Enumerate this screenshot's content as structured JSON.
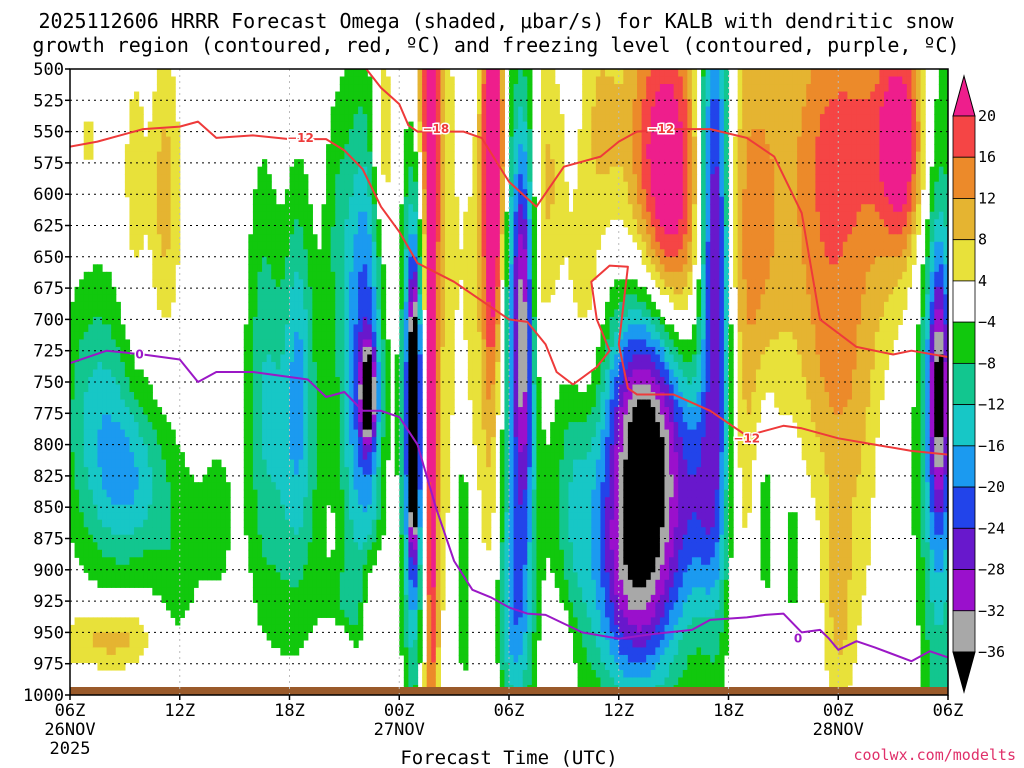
{
  "chart_data": {
    "type": "heatmap",
    "title": "2025112606 HRRR Forecast Omega (shaded, μbar/s) for KALB with dendritic snow",
    "subtitle": "growth region (contoured, red, ºC) and freezing level (contoured, purple, ºC)",
    "xlabel": "Forecast Time (UTC)",
    "credit": "coolwx.com/modelts",
    "y_axis": {
      "label": "",
      "reversed": true,
      "ylim": [
        1000,
        500
      ],
      "ticks": [
        "500",
        "525",
        "550",
        "575",
        "600",
        "625",
        "650",
        "675",
        "700",
        "725",
        "750",
        "775",
        "800",
        "825",
        "850",
        "875",
        "900",
        "925",
        "950",
        "975",
        "1000"
      ]
    },
    "x_axis": {
      "xlim_hours": [
        0,
        48
      ],
      "ticks": [
        {
          "hour": 0,
          "label": "06Z",
          "date": "26NOV",
          "year": "2025"
        },
        {
          "hour": 6,
          "label": "12Z",
          "date": "",
          "year": ""
        },
        {
          "hour": 12,
          "label": "18Z",
          "date": "",
          "year": ""
        },
        {
          "hour": 18,
          "label": "00Z",
          "date": "27NOV",
          "year": ""
        },
        {
          "hour": 24,
          "label": "06Z",
          "date": "",
          "year": ""
        },
        {
          "hour": 30,
          "label": "12Z",
          "date": "",
          "year": ""
        },
        {
          "hour": 36,
          "label": "18Z",
          "date": "",
          "year": ""
        },
        {
          "hour": 42,
          "label": "00Z",
          "date": "28NOV",
          "year": ""
        },
        {
          "hour": 48,
          "label": "06Z",
          "date": "",
          "year": ""
        }
      ]
    },
    "grid": true,
    "colorbar": {
      "placement": "right",
      "units": "μbar/s",
      "labels": [
        "20",
        "16",
        "12",
        "8",
        "4",
        "−4",
        "−8",
        "−12",
        "−16",
        "−20",
        "−24",
        "−28",
        "−32",
        "−36"
      ],
      "bins": [
        {
          "from": 20,
          "to": 99,
          "color": "#ee1e8c"
        },
        {
          "from": 16,
          "to": 20,
          "color": "#f54545"
        },
        {
          "from": 12,
          "to": 16,
          "color": "#ec8a2a"
        },
        {
          "from": 8,
          "to": 12,
          "color": "#e5b431"
        },
        {
          "from": 4,
          "to": 8,
          "color": "#e8e13a"
        },
        {
          "from": -4,
          "to": 4,
          "color": "#ffffff"
        },
        {
          "from": -8,
          "to": -4,
          "color": "#11c80d"
        },
        {
          "from": -12,
          "to": -8,
          "color": "#12c68f"
        },
        {
          "from": -16,
          "to": -12,
          "color": "#17c7c6"
        },
        {
          "from": -20,
          "to": -16,
          "color": "#1b9af0"
        },
        {
          "from": -24,
          "to": -20,
          "color": "#2244ea"
        },
        {
          "from": -28,
          "to": -24,
          "color": "#6818cc"
        },
        {
          "from": -32,
          "to": -28,
          "color": "#9a10cc"
        },
        {
          "from": -36,
          "to": -32,
          "color": "#a8a8a8"
        },
        {
          "from": -99,
          "to": -36,
          "color": "#000000"
        }
      ]
    },
    "omega_features": [
      {
        "hour": 2.5,
        "p": 955,
        "sx": 2.4,
        "sp": 18,
        "value": 11
      },
      {
        "hour": 3.5,
        "p": 600,
        "sx": 0.5,
        "sp": 90,
        "value": 6
      },
      {
        "hour": 1.0,
        "p": 560,
        "sx": 0.5,
        "sp": 35,
        "value": 5
      },
      {
        "hour": 5.2,
        "p": 600,
        "sx": 0.6,
        "sp": 80,
        "value": 10
      },
      {
        "hour": 5.8,
        "p": 900,
        "sx": 0.9,
        "sp": 70,
        "value": -6
      },
      {
        "hour": 8.0,
        "p": 860,
        "sx": 0.8,
        "sp": 60,
        "value": -5
      },
      {
        "hour": 10.5,
        "p": 720,
        "sx": 0.6,
        "sp": 130,
        "value": -6
      },
      {
        "hour": 12.5,
        "p": 720,
        "sx": 0.5,
        "sp": 100,
        "value": -8
      },
      {
        "hour": 5.0,
        "p": 960,
        "sx": 1.2,
        "sp": 18,
        "value": -4
      },
      {
        "hour": 1.5,
        "p": 780,
        "sx": 1.4,
        "sp": 80,
        "value": -13
      },
      {
        "hour": 3.5,
        "p": 830,
        "sx": 1.3,
        "sp": 50,
        "value": -13
      },
      {
        "hour": 12.0,
        "p": 800,
        "sx": 1.4,
        "sp": 110,
        "value": -12
      },
      {
        "hour": 14.5,
        "p": 620,
        "sx": 0.5,
        "sp": 80,
        "value": -6
      },
      {
        "hour": 15.3,
        "p": 740,
        "sx": 0.5,
        "sp": 140,
        "value": -10
      },
      {
        "hour": 15.2,
        "p": 930,
        "sx": 0.9,
        "sp": 25,
        "value": -6
      },
      {
        "hour": 16.3,
        "p": 730,
        "sx": 0.6,
        "sp": 150,
        "value": -22
      },
      {
        "hour": 16.3,
        "p": 760,
        "sx": 0.3,
        "sp": 25,
        "value": -28
      },
      {
        "hour": 17.0,
        "p": 560,
        "sx": 0.5,
        "sp": 70,
        "value": 10
      },
      {
        "hour": 16.5,
        "p": 930,
        "sx": 0.5,
        "sp": 35,
        "value": 13
      },
      {
        "hour": 15.0,
        "p": 960,
        "sx": 0.5,
        "sp": 18,
        "value": 6
      },
      {
        "hour": 18.8,
        "p": 780,
        "sx": 0.45,
        "sp": 140,
        "value": -30
      },
      {
        "hour": 18.8,
        "p": 780,
        "sx": 0.18,
        "sp": 60,
        "value": -40
      },
      {
        "hour": 19.5,
        "p": 520,
        "sx": 0.5,
        "sp": 50,
        "value": 10
      },
      {
        "hour": 19.6,
        "p": 700,
        "sx": 0.4,
        "sp": 300,
        "value": 14
      },
      {
        "hour": 19.8,
        "p": 680,
        "sx": 0.2,
        "sp": 230,
        "value": 20
      },
      {
        "hour": 20.5,
        "p": 660,
        "sx": 0.6,
        "sp": 200,
        "value": 6
      },
      {
        "hour": 21.5,
        "p": 870,
        "sx": 0.3,
        "sp": 100,
        "value": -9
      },
      {
        "hour": 21.8,
        "p": 720,
        "sx": 0.4,
        "sp": 100,
        "value": 6
      },
      {
        "hour": 23.0,
        "p": 600,
        "sx": 0.45,
        "sp": 200,
        "value": 18
      },
      {
        "hour": 23.2,
        "p": 570,
        "sx": 0.35,
        "sp": 90,
        "value": 22
      },
      {
        "hour": 24.5,
        "p": 740,
        "sx": 0.8,
        "sp": 160,
        "value": -16
      },
      {
        "hour": 24.8,
        "p": 700,
        "sx": 0.4,
        "sp": 110,
        "value": -22
      },
      {
        "hour": 24.3,
        "p": 940,
        "sx": 0.7,
        "sp": 60,
        "value": -12
      },
      {
        "hour": 26.0,
        "p": 590,
        "sx": 0.7,
        "sp": 80,
        "value": 10
      },
      {
        "hour": 25.5,
        "p": 700,
        "sx": 0.4,
        "sp": 50,
        "value": 6
      },
      {
        "hour": 26.8,
        "p": 960,
        "sx": 0.6,
        "sp": 25,
        "value": 6
      },
      {
        "hour": 27.5,
        "p": 820,
        "sx": 0.8,
        "sp": 100,
        "value": -10
      },
      {
        "hour": 28.0,
        "p": 700,
        "sx": 0.8,
        "sp": 70,
        "value": 10
      },
      {
        "hour": 29.0,
        "p": 540,
        "sx": 0.8,
        "sp": 60,
        "value": 8
      },
      {
        "hour": 31.5,
        "p": 845,
        "sx": 1.9,
        "sp": 95,
        "value": -32
      },
      {
        "hour": 31.5,
        "p": 760,
        "sx": 1.4,
        "sp": 70,
        "value": -16
      },
      {
        "hour": 30.5,
        "p": 920,
        "sx": 1.5,
        "sp": 60,
        "value": -12
      },
      {
        "hour": 32.5,
        "p": 560,
        "sx": 1.5,
        "sp": 90,
        "value": 22
      },
      {
        "hour": 33.0,
        "p": 650,
        "sx": 1.2,
        "sp": 70,
        "value": 9
      },
      {
        "hour": 35.0,
        "p": 580,
        "sx": 0.6,
        "sp": 120,
        "value": -14
      },
      {
        "hour": 35.4,
        "p": 680,
        "sx": 0.6,
        "sp": 180,
        "value": -24
      },
      {
        "hour": 34.5,
        "p": 850,
        "sx": 0.8,
        "sp": 60,
        "value": -10
      },
      {
        "hour": 36.5,
        "p": 700,
        "sx": 1.0,
        "sp": 200,
        "value": 7
      },
      {
        "hour": 37.8,
        "p": 620,
        "sx": 1.1,
        "sp": 120,
        "value": 10
      },
      {
        "hour": 38.0,
        "p": 850,
        "sx": 0.4,
        "sp": 70,
        "value": -9
      },
      {
        "hour": 39.5,
        "p": 880,
        "sx": 0.35,
        "sp": 50,
        "value": -7
      },
      {
        "hour": 41.0,
        "p": 580,
        "sx": 1.5,
        "sp": 110,
        "value": 13
      },
      {
        "hour": 41.5,
        "p": 750,
        "sx": 1.3,
        "sp": 70,
        "value": 6
      },
      {
        "hour": 42.0,
        "p": 930,
        "sx": 0.6,
        "sp": 60,
        "value": 8
      },
      {
        "hour": 44.0,
        "p": 550,
        "sx": 1.8,
        "sp": 80,
        "value": 13
      },
      {
        "hour": 45.5,
        "p": 560,
        "sx": 0.8,
        "sp": 60,
        "value": 18
      },
      {
        "hour": 43.5,
        "p": 780,
        "sx": 1.5,
        "sp": 120,
        "value": 7
      },
      {
        "hour": 45.0,
        "p": 820,
        "sx": 0.9,
        "sp": 60,
        "value": -6
      },
      {
        "hour": 47.5,
        "p": 780,
        "sx": 0.8,
        "sp": 200,
        "value": -16
      },
      {
        "hour": 47.5,
        "p": 760,
        "sx": 0.4,
        "sp": 70,
        "value": -24
      }
    ],
    "contours": [
      {
        "name": "dendritic-lower",
        "color": "#ee3a3a",
        "labels": [
          {
            "hour": 12.6,
            "p": 555,
            "text": "−12"
          },
          {
            "hour": 37.0,
            "p": 795,
            "text": "−12"
          }
        ],
        "points": [
          [
            0,
            562
          ],
          [
            1.5,
            558
          ],
          [
            4,
            548
          ],
          [
            6,
            546
          ],
          [
            7,
            542
          ],
          [
            8,
            555
          ],
          [
            10,
            553
          ],
          [
            12,
            556
          ],
          [
            14,
            556
          ],
          [
            15,
            565
          ],
          [
            16,
            580
          ],
          [
            17,
            610
          ],
          [
            18,
            630
          ],
          [
            19,
            655
          ],
          [
            21,
            670
          ],
          [
            24,
            700
          ],
          [
            25,
            702
          ],
          [
            26,
            720
          ],
          [
            26.6,
            742
          ],
          [
            27.5,
            752
          ],
          [
            28.8,
            738
          ],
          [
            29.5,
            725
          ],
          [
            28.8,
            700
          ],
          [
            28.5,
            670
          ],
          [
            29.5,
            657
          ],
          [
            30.5,
            658
          ],
          [
            30,
            720
          ],
          [
            30.5,
            755
          ],
          [
            31,
            760
          ],
          [
            33,
            760
          ],
          [
            35,
            773
          ],
          [
            37,
            793
          ],
          [
            39,
            785
          ],
          [
            40,
            787
          ],
          [
            42,
            795
          ],
          [
            44,
            800
          ],
          [
            46,
            805
          ],
          [
            48,
            808
          ]
        ]
      },
      {
        "name": "dendritic-upper",
        "color": "#ee3a3a",
        "labels": [
          {
            "hour": 20.0,
            "p": 548,
            "text": "−18"
          },
          {
            "hour": 32.3,
            "p": 548,
            "text": "−12"
          }
        ],
        "points": [
          [
            16.2,
            500
          ],
          [
            17,
            515
          ],
          [
            18,
            528
          ],
          [
            18.5,
            545
          ],
          [
            19,
            550
          ],
          [
            21.5,
            550
          ],
          [
            22.5,
            555
          ],
          [
            24,
            590
          ],
          [
            25.5,
            610
          ],
          [
            27,
            578
          ],
          [
            29,
            570
          ],
          [
            30,
            558
          ],
          [
            31,
            550
          ],
          [
            33,
            548
          ],
          [
            35,
            548
          ],
          [
            37,
            555
          ],
          [
            38.5,
            570
          ],
          [
            40,
            615
          ],
          [
            41,
            700
          ],
          [
            43,
            722
          ],
          [
            45,
            728
          ],
          [
            46,
            725
          ],
          [
            48,
            730
          ]
        ]
      },
      {
        "name": "freezing-level",
        "color": "#9b18c6",
        "labels": [
          {
            "hour": 3.8,
            "p": 728,
            "text": "0"
          },
          {
            "hour": 39.8,
            "p": 955,
            "text": "0"
          }
        ],
        "points": [
          [
            0,
            735
          ],
          [
            2,
            725
          ],
          [
            4,
            728
          ],
          [
            6,
            732
          ],
          [
            7,
            750
          ],
          [
            8,
            742
          ],
          [
            10,
            742
          ],
          [
            12,
            746
          ],
          [
            13,
            748
          ],
          [
            14,
            762
          ],
          [
            15,
            758
          ],
          [
            16,
            773
          ],
          [
            17,
            773
          ],
          [
            18,
            778
          ],
          [
            19,
            800
          ],
          [
            20,
            850
          ],
          [
            21,
            893
          ],
          [
            22,
            916
          ],
          [
            23,
            922
          ],
          [
            24,
            930
          ],
          [
            25,
            935
          ],
          [
            26,
            936
          ],
          [
            28,
            950
          ],
          [
            30,
            955
          ],
          [
            32,
            951
          ],
          [
            34,
            948
          ],
          [
            35,
            940
          ],
          [
            37,
            938
          ],
          [
            38,
            936
          ],
          [
            39,
            935
          ],
          [
            40,
            950
          ],
          [
            41,
            948
          ],
          [
            41.5,
            955
          ],
          [
            42,
            964
          ],
          [
            43,
            957
          ],
          [
            44,
            962
          ],
          [
            46,
            973
          ],
          [
            47,
            965
          ],
          [
            48,
            970
          ]
        ]
      }
    ]
  }
}
